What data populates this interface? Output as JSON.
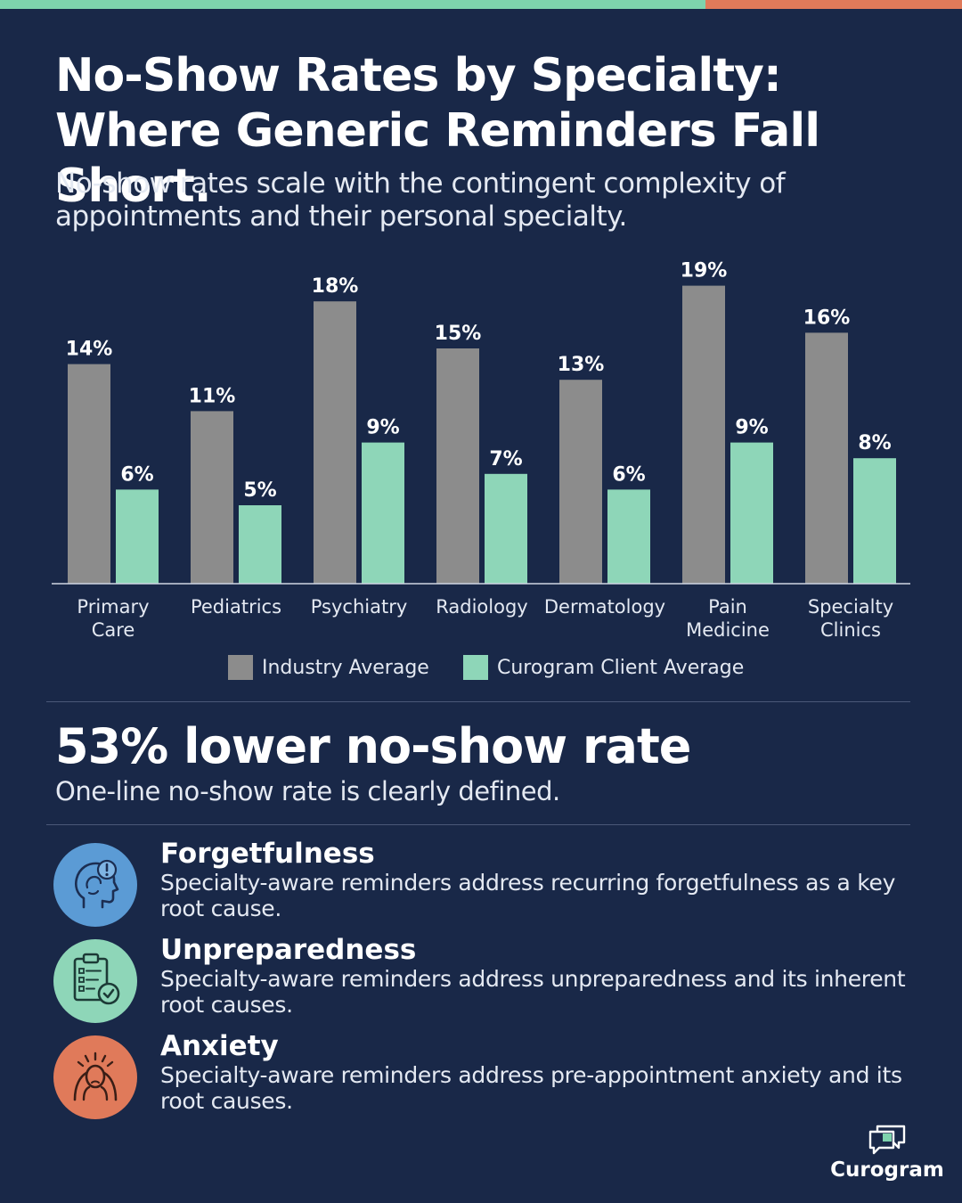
{
  "title": "No-Show Rates by Specialty: Where Generic Reminders Fall Short.",
  "subtitle": "No-show rates scale with the contingent complexity of appointments and their personal specialty.",
  "colors": {
    "background": "#192848",
    "industry": "#8c8c8c",
    "client": "#8ed6b8",
    "accent_green": "#7ed3ad",
    "accent_orange": "#e07a5a"
  },
  "chart_data": {
    "type": "bar",
    "categories": [
      [
        "Primary",
        "Care"
      ],
      [
        "Pediatrics"
      ],
      [
        "Psychiatry"
      ],
      [
        "Radiology"
      ],
      [
        "Dermatology"
      ],
      [
        "Pain",
        "Medicine"
      ],
      [
        "Specialty",
        "Clinics"
      ]
    ],
    "series": [
      {
        "name": "Industry Average",
        "values": [
          14,
          11,
          18,
          15,
          13,
          19,
          16
        ],
        "labels": [
          "14%",
          "11%",
          "18%",
          "15%",
          "13%",
          "19%",
          "16%"
        ]
      },
      {
        "name": "Curogram Client Average",
        "values": [
          6,
          5,
          9,
          7,
          6,
          9,
          8
        ],
        "labels": [
          "6%",
          "5%",
          "9%",
          "7%",
          "6%",
          "9%",
          "8%"
        ]
      }
    ],
    "ylim": [
      0,
      19
    ],
    "grid": false,
    "legend": "bottom"
  },
  "stat": {
    "headline": "53% lower no-show rate",
    "subline": "One-line no-show rate is clearly defined."
  },
  "causes": [
    {
      "title": "Forgetfulness",
      "description": "Specialty-aware reminders address recurring forgetfulness as a key root cause.",
      "icon": "head-alert-icon",
      "color": "#5b9bd5"
    },
    {
      "title": "Unpreparedness",
      "description": "Specialty-aware reminders address unpreparedness and its inherent root causes.",
      "icon": "clipboard-check-icon",
      "color": "#8ed6b8"
    },
    {
      "title": "Anxiety",
      "description": "Specialty-aware reminders address pre-appointment anxiety and its root causes.",
      "icon": "stressed-person-icon",
      "color": "#e07a5a"
    }
  ],
  "brand": {
    "name": "Curogram",
    "icon": "chat-bubbles-icon"
  }
}
